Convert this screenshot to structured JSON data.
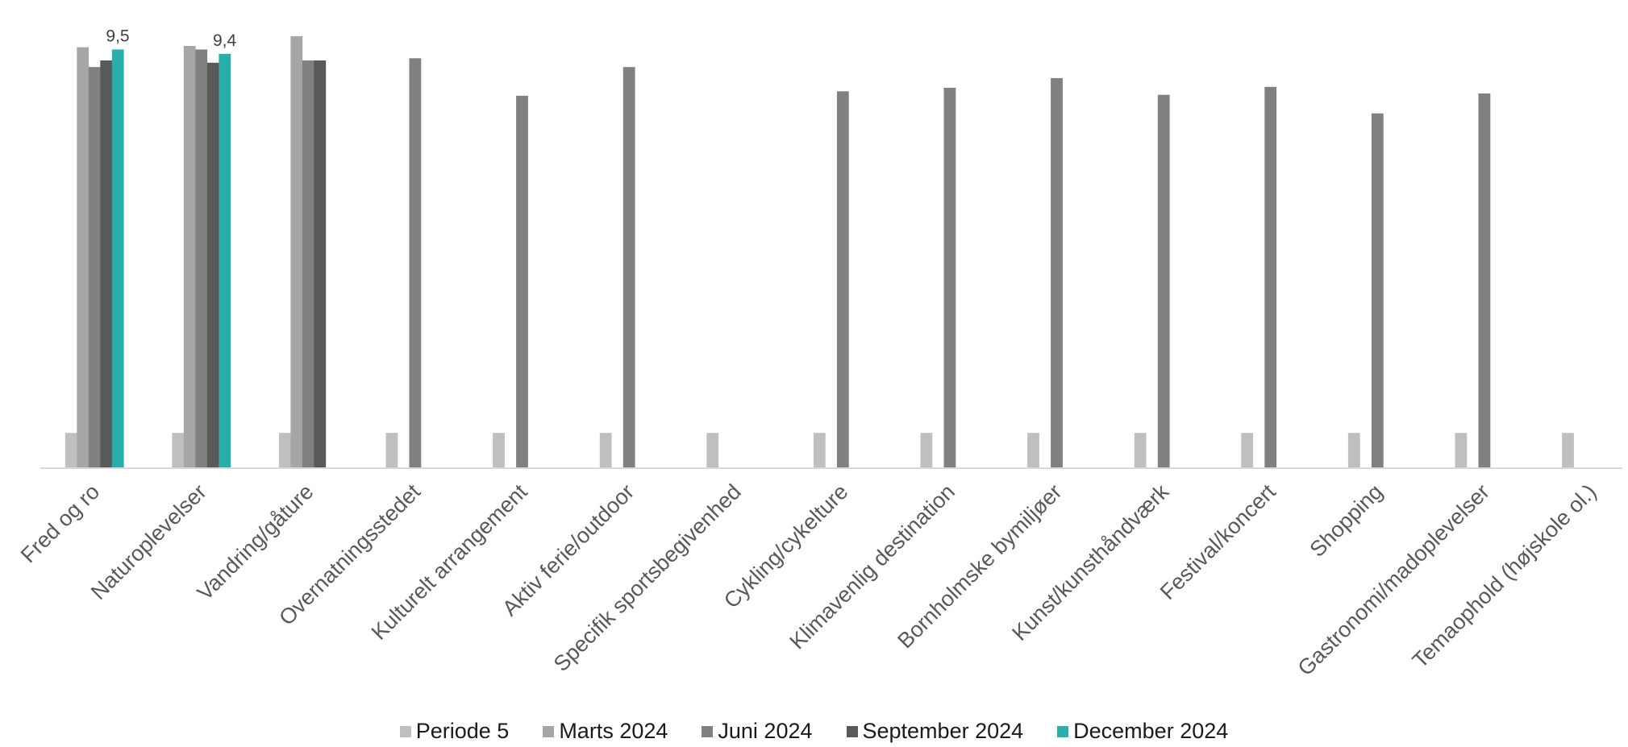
{
  "chart_data": {
    "type": "bar",
    "title": "",
    "xlabel": "",
    "ylabel": "",
    "ylim": [
      0,
      10
    ],
    "grid": false,
    "legend_position": "bottom",
    "categories": [
      "Fred og ro",
      "Naturoplevelser",
      "Vandring/gåture",
      "Overnatningsstedet",
      "Kulturelt arrangement",
      "Aktiv ferie/outdoor",
      "Specifik sportsbegivenhed",
      "Cykling/cykelture",
      "Klimavenlig destination",
      "Bornholmske bymiljøer",
      "Kunst/kunsthåndværk",
      "Festival/koncert",
      "Shopping",
      "Gastronomi/madoplevelser",
      "Temaophold (højskole ol.)"
    ],
    "series": [
      {
        "name": "Periode 5",
        "color": "#bfbfbf",
        "values": [
          0.8,
          0.8,
          0.8,
          0.8,
          0.8,
          0.8,
          0.8,
          0.8,
          0.8,
          0.8,
          0.8,
          0.8,
          0.8,
          0.8,
          0.8
        ]
      },
      {
        "name": "Marts 2024",
        "color": "#a6a6a6",
        "values": [
          9.55,
          9.58,
          9.8,
          0,
          0,
          0,
          0,
          0,
          0,
          0,
          0,
          0,
          0,
          0,
          0
        ]
      },
      {
        "name": "Juni 2024",
        "color": "#808080",
        "values": [
          9.1,
          9.5,
          9.25,
          9.3,
          8.45,
          9.1,
          0,
          8.55,
          8.63,
          8.85,
          8.47,
          8.65,
          8.05,
          8.5,
          0
        ]
      },
      {
        "name": "September 2024",
        "color": "#595959",
        "values": [
          9.25,
          9.2,
          9.25,
          0,
          0,
          0,
          0,
          0,
          0,
          0,
          0,
          0,
          0,
          0,
          0
        ]
      },
      {
        "name": "December 2024",
        "color": "#2aaeab",
        "values": [
          9.5,
          9.4,
          0,
          0,
          0,
          0,
          0,
          0,
          0,
          0,
          0,
          0,
          0,
          0,
          0
        ]
      }
    ],
    "data_labels": [
      {
        "category": "Fred og ro",
        "series": "December 2024",
        "text": "9,5"
      },
      {
        "category": "Naturoplevelser",
        "series": "December 2024",
        "text": "9,4"
      }
    ]
  }
}
